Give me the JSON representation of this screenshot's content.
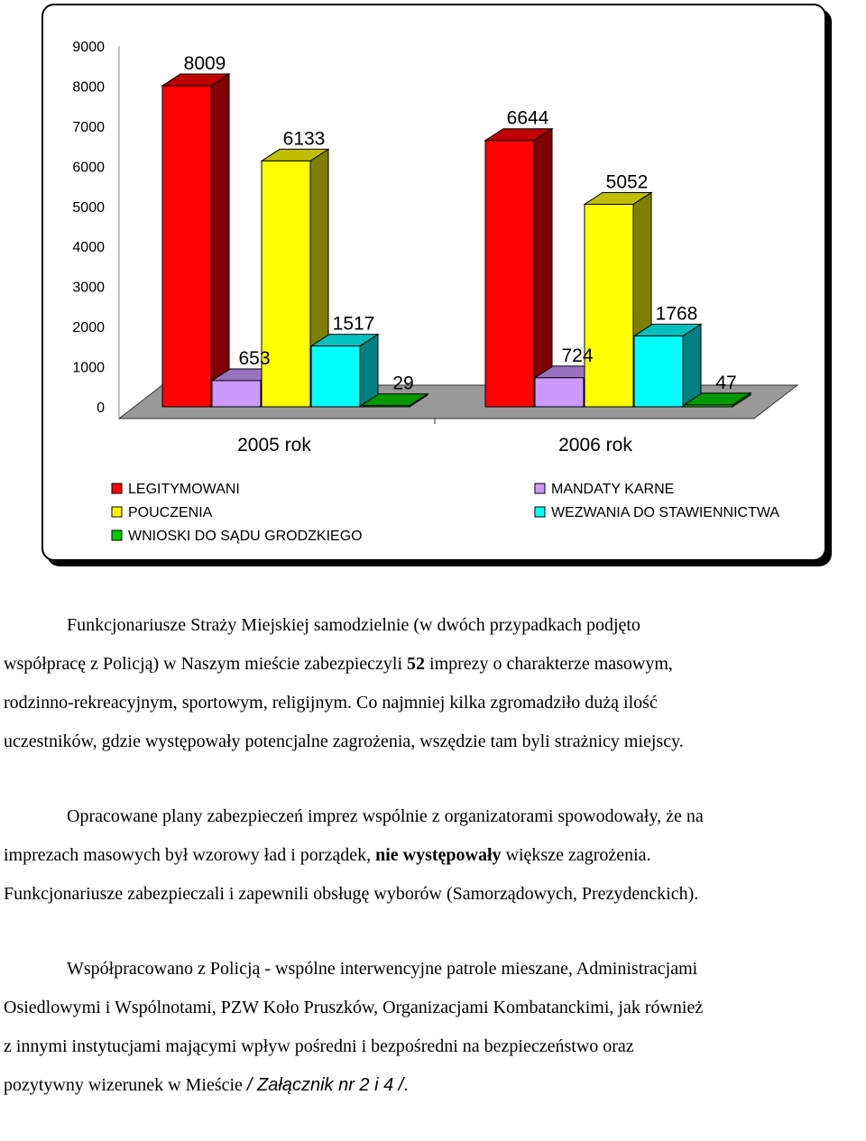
{
  "chart_data": {
    "type": "bar",
    "categories": [
      "2005 rok",
      "2006 rok"
    ],
    "series": [
      {
        "name": "LEGITYMOWANI",
        "color": "#ff0000",
        "values": [
          8009,
          6644
        ]
      },
      {
        "name": "MANDATY KARNE",
        "color": "#cc99ff",
        "values": [
          653,
          724
        ]
      },
      {
        "name": "POUCZENIA",
        "color": "#ffff00",
        "values": [
          6133,
          5052
        ]
      },
      {
        "name": "WEZWANIA DO STAWIENNICTWA",
        "color": "#00ffff",
        "values": [
          1517,
          1768
        ]
      },
      {
        "name": "WNIOSKI DO SĄDU GRODZKIEGO",
        "color": "#00cc00",
        "values": [
          29,
          47
        ]
      }
    ],
    "data_labels": [
      [
        "8009",
        "653",
        "6133",
        "1517",
        "29"
      ],
      [
        "6644",
        "724",
        "5052",
        "1768",
        "47"
      ]
    ],
    "yticks": [
      "0",
      "1000",
      "2000",
      "3000",
      "4000",
      "5000",
      "6000",
      "7000",
      "8000",
      "9000"
    ],
    "ylim": [
      0,
      9000
    ],
    "legend": {
      "placement": "bottom",
      "items": [
        {
          "label": "LEGITYMOWANI",
          "color": "#ff0000"
        },
        {
          "label": "MANDATY KARNE",
          "color": "#cc99ff"
        },
        {
          "label": "POUCZENIA",
          "color": "#ffff00"
        },
        {
          "label": "WEZWANIA DO STAWIENNICTWA",
          "color": "#00ffff"
        },
        {
          "label": "WNIOSKI DO SĄDU GRODZKIEGO",
          "color": "#00cc00"
        }
      ]
    }
  },
  "text": {
    "p1": {
      "l1": "Funkcjonariusze Straży Miejskiej samodzielnie (w dwóch przypadkach podjęto",
      "l2a": "współpracę z Policją) w Naszym mieście zabezpieczyli ",
      "l2b": "52",
      "l2c": " imprezy o charakterze masowym,",
      "l3": "rodzinno-rekreacyjnym, sportowym, religijnym. Co najmniej kilka zgromadziło dużą ilość",
      "l4": "uczestników, gdzie występowały potencjalne zagrożenia, wszędzie tam byli strażnicy miejscy."
    },
    "p2": {
      "l1": "Opracowane plany zabezpieczeń imprez wspólnie z organizatorami spowodowały, że na",
      "l2a": "imprezach masowych był wzorowy ład i porządek, ",
      "l2b": "nie występowały",
      "l2c": " większe zagrożenia.",
      "l3": "Funkcjonariusze zabezpieczali i zapewnili obsługę wyborów (Samorządowych, Prezydenckich)."
    },
    "p3": {
      "l1": "Współpracowano z Policją - wspólne interwencyjne patrole mieszane, Administracjami",
      "l2": "Osiedlowymi i Wspólnotami, PZW Koło Pruszków, Organizacjami Kombatanckimi, jak również",
      "l3": "z innymi instytucjami mającymi wpływ pośredni i bezpośredni na bezpieczeństwo oraz",
      "l4a": "pozytywny wizerunek w Mieście ",
      "l4b": "/ Załącznik nr 2 i 4 /",
      "l4c": "."
    }
  }
}
